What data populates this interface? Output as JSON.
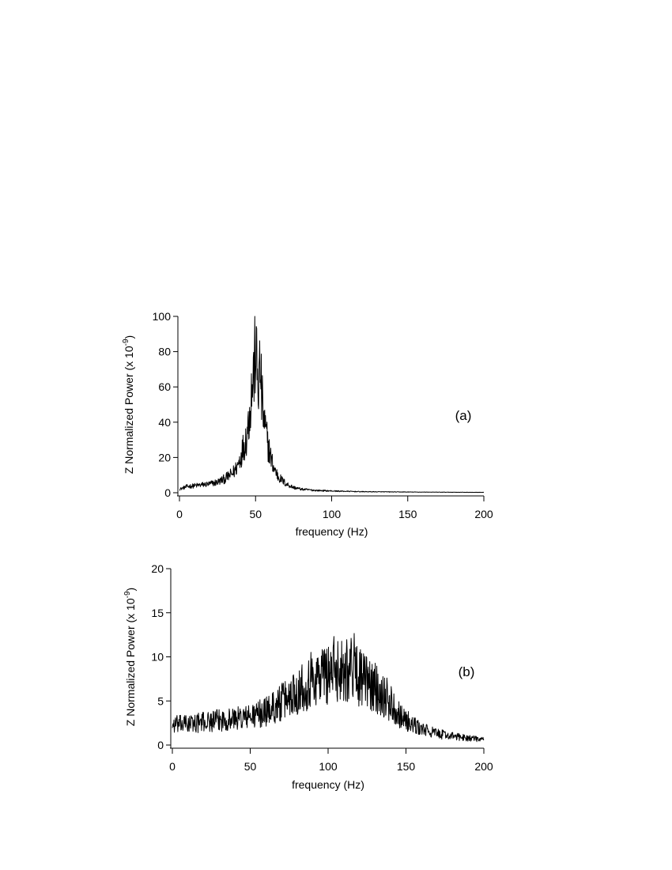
{
  "chart_data": [
    {
      "type": "line",
      "label": "(a)",
      "xlabel": "frequency (Hz)",
      "ylabel": "Z Normalized Power (x 10",
      "ylabel_exponent": "-9",
      "ylabel_suffix": ")",
      "xlim": [
        0,
        200
      ],
      "ylim": [
        0,
        100
      ],
      "xticks": [
        0,
        50,
        100,
        150,
        200
      ],
      "yticks": [
        0,
        20,
        40,
        60,
        80,
        100
      ],
      "grid": false,
      "line_color": "#000000",
      "series": [
        {
          "x": [
            0,
            5,
            10,
            15,
            20,
            25,
            30,
            35,
            38,
            40,
            42,
            44,
            45,
            46,
            47,
            48,
            49,
            50,
            51,
            52,
            53,
            54,
            55,
            56,
            58,
            60,
            62,
            65,
            70,
            75,
            80,
            90,
            100,
            120,
            150,
            175,
            200
          ],
          "y": [
            2,
            3.5,
            4,
            4.5,
            5,
            6,
            8,
            11,
            15,
            20,
            26,
            32,
            38,
            45,
            55,
            62,
            70,
            82,
            68,
            60,
            72,
            55,
            44,
            38,
            28,
            20,
            14,
            9,
            5,
            3,
            2,
            1.3,
            1,
            0.6,
            0.4,
            0.3,
            0.2
          ]
        }
      ]
    },
    {
      "type": "line",
      "label": "(b)",
      "xlabel": "frequency (Hz)",
      "ylabel": "Z Normalized Power (x 10",
      "ylabel_exponent": "-9",
      "ylabel_suffix": ")",
      "xlim": [
        0,
        200
      ],
      "ylim": [
        0,
        20
      ],
      "xticks": [
        0,
        50,
        100,
        150,
        200
      ],
      "yticks": [
        0,
        5,
        10,
        15,
        20
      ],
      "grid": false,
      "line_color": "#000000",
      "series": [
        {
          "x": [
            0,
            10,
            20,
            30,
            40,
            50,
            60,
            70,
            80,
            90,
            100,
            105,
            110,
            115,
            118,
            120,
            125,
            130,
            135,
            140,
            145,
            150,
            155,
            160,
            170,
            180,
            190,
            200
          ],
          "y": [
            2.3,
            2.4,
            2.6,
            2.8,
            3.0,
            3.2,
            3.8,
            4.8,
            6.2,
            7.5,
            8.3,
            8.6,
            8.7,
            8.9,
            8.8,
            7.8,
            7.0,
            6.5,
            5.8,
            4.8,
            3.7,
            2.8,
            2.2,
            1.8,
            1.3,
            1.0,
            0.8,
            0.6
          ]
        }
      ]
    }
  ]
}
